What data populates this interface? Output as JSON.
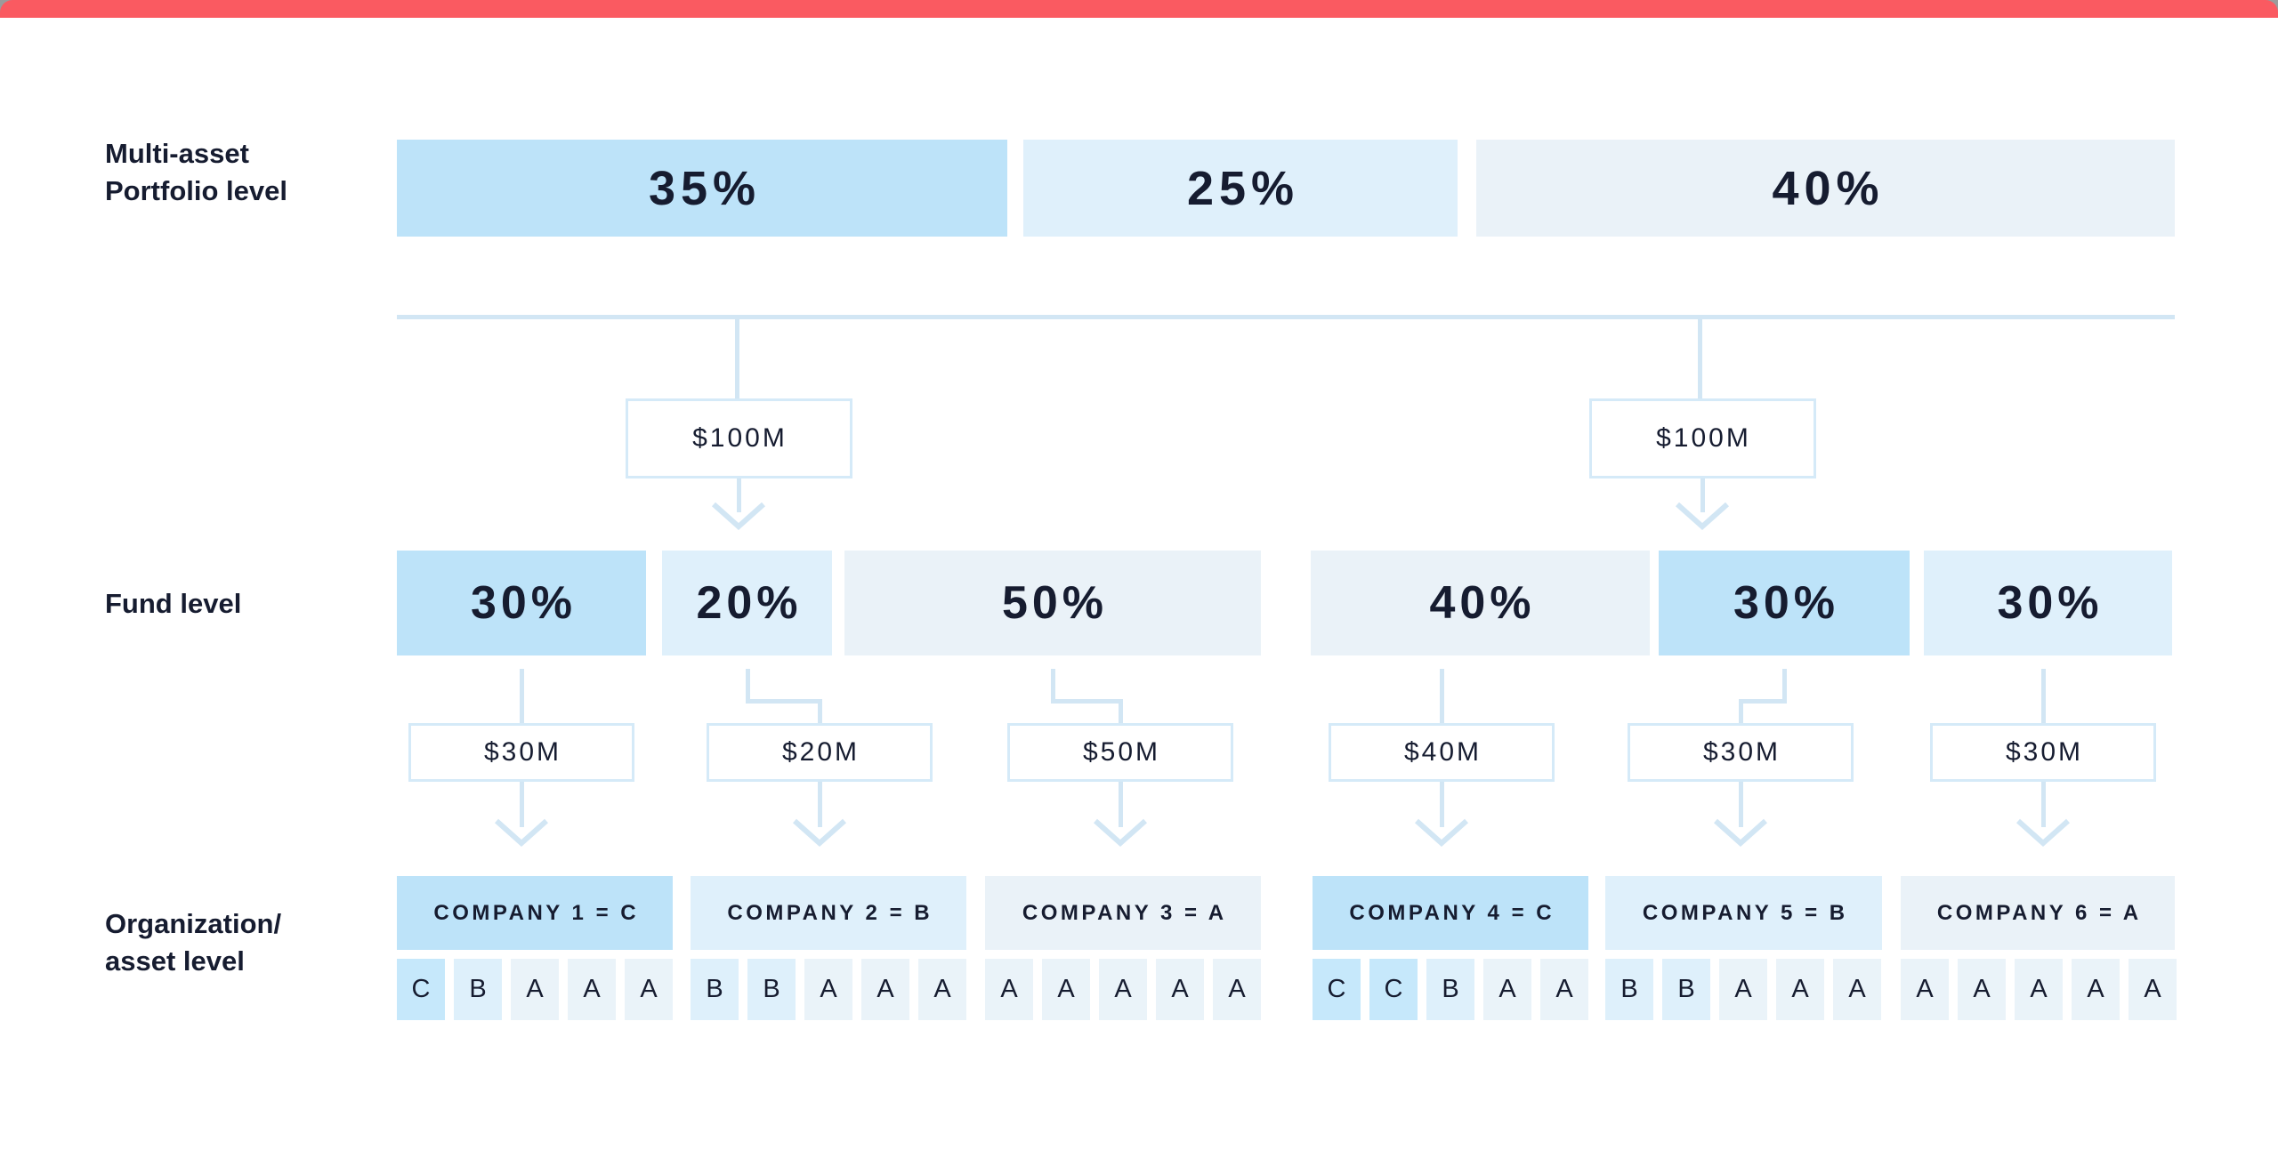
{
  "colors": {
    "accent_bar": "#FA5A61",
    "window_corner": "#9B9B9B",
    "rating_c_fill": "#BDE3F9",
    "rating_b_fill": "#DFF0FB",
    "rating_a_fill": "#EAF2F8",
    "tile_c_fill": "#C6E8FB",
    "tile_b_fill": "#DEF0FB",
    "tile_a_fill": "#EAF3F9",
    "connector": "#D2E6F4",
    "box_border": "#D5EAF8",
    "text": "#161C30"
  },
  "labels": {
    "portfolio_level_line1": "Multi-asset",
    "portfolio_level_line2": "Portfolio level",
    "fund_level": "Fund level",
    "org_level_line1": "Organization/",
    "org_level_line2": "asset level"
  },
  "portfolio_allocations": [
    {
      "pct": "35%",
      "rating": "C"
    },
    {
      "pct": "25%",
      "rating": "B"
    },
    {
      "pct": "40%",
      "rating": "A"
    }
  ],
  "fund_inflows": [
    {
      "amount": "$100M"
    },
    {
      "amount": "$100M"
    }
  ],
  "funds": [
    {
      "pct": "30%",
      "rating": "C",
      "inflow": "$30M"
    },
    {
      "pct": "20%",
      "rating": "B",
      "inflow": "$20M"
    },
    {
      "pct": "50%",
      "rating": "A",
      "inflow": "$50M"
    },
    {
      "pct": "40%",
      "rating": "A",
      "inflow": "$40M"
    },
    {
      "pct": "30%",
      "rating": "C",
      "inflow": "$30M"
    },
    {
      "pct": "30%",
      "rating": "B",
      "inflow": "$30M"
    }
  ],
  "companies": [
    {
      "label": "COMPANY 1 = C",
      "rating": "C",
      "assets": [
        "C",
        "B",
        "A",
        "A",
        "A"
      ]
    },
    {
      "label": "COMPANY 2 = B",
      "rating": "B",
      "assets": [
        "B",
        "B",
        "A",
        "A",
        "A"
      ]
    },
    {
      "label": "COMPANY 3 = A",
      "rating": "A",
      "assets": [
        "A",
        "A",
        "A",
        "A",
        "A"
      ]
    },
    {
      "label": "COMPANY 4 = C",
      "rating": "C",
      "assets": [
        "C",
        "C",
        "B",
        "A",
        "A"
      ]
    },
    {
      "label": "COMPANY 5 = B",
      "rating": "B",
      "assets": [
        "B",
        "B",
        "A",
        "A",
        "A"
      ]
    },
    {
      "label": "COMPANY 6 = A",
      "rating": "A",
      "assets": [
        "A",
        "A",
        "A",
        "A",
        "A"
      ]
    }
  ]
}
